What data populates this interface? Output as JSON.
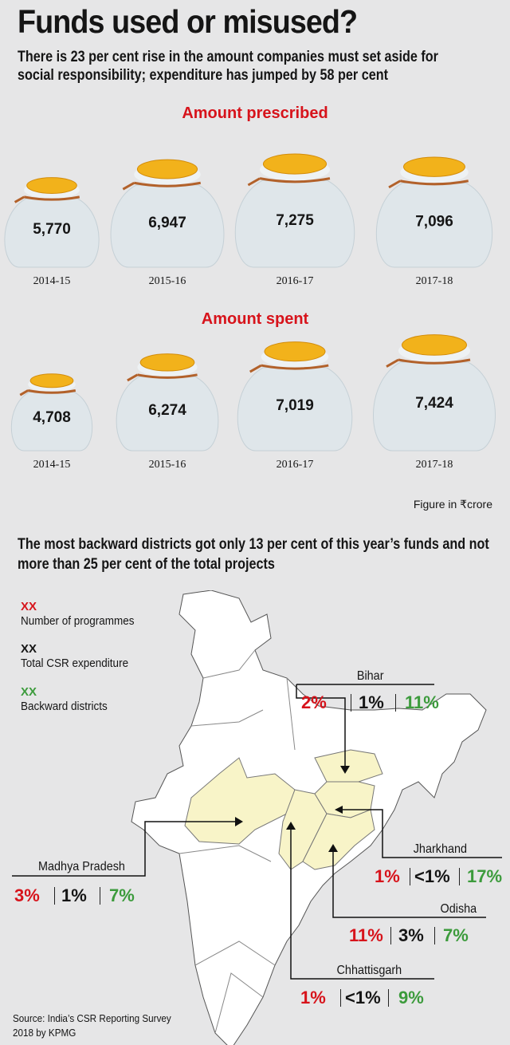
{
  "title": "Funds used or misused?",
  "subtitle": "There is 23 per cent rise in the amount companies must set aside for social responsibility; expenditure has jumped by 58 per cent",
  "unit_note": "Figure in ₹crore",
  "chart_data": {
    "type": "bar",
    "categories": [
      "2014-15",
      "2015-16",
      "2016-17",
      "2017-18"
    ],
    "series": [
      {
        "name": "Amount prescribed",
        "values": [
          5770,
          6947,
          7275,
          7096
        ],
        "labels": [
          "5,770",
          "6,947",
          "7,275",
          "7,096"
        ]
      },
      {
        "name": "Amount spent",
        "values": [
          4708,
          6274,
          7019,
          7424
        ],
        "labels": [
          "4,708",
          "6,274",
          "7,019",
          "7,424"
        ]
      }
    ],
    "colors": {
      "bag": "#dfe6ea",
      "coins": "#f2b21b",
      "tie": "#b2612a",
      "heading": "#d7131b"
    }
  },
  "map": {
    "subtitle": "The most backward districts got only 13 per cent of this year’s funds and not more than 25 per cent of the total projects",
    "legend": [
      {
        "marker": "XX",
        "label": "Number of programmes",
        "color": "#d7131b"
      },
      {
        "marker": "XX",
        "label": "Total CSR expenditure",
        "color": "#151515"
      },
      {
        "marker": "XX",
        "label": "Backward districts",
        "color": "#3c9b3c"
      }
    ],
    "states": {
      "bihar": {
        "name": "Bihar",
        "programmes": "2%",
        "expenditure": "1%",
        "backward": "11%"
      },
      "jharkhand": {
        "name": "Jharkhand",
        "programmes": "1%",
        "expenditure": "<1%",
        "backward": "17%"
      },
      "odisha": {
        "name": "Odisha",
        "programmes": "11%",
        "expenditure": "3%",
        "backward": "7%"
      },
      "chhattisgarh": {
        "name": "Chhattisgarh",
        "programmes": "1%",
        "expenditure": "<1%",
        "backward": "9%"
      },
      "mp": {
        "name": "Madhya Pradesh",
        "programmes": "3%",
        "expenditure": "1%",
        "backward": "7%"
      }
    },
    "highlight_color": "#f8f4c8"
  },
  "source": "Source: India’s CSR Reporting Survey 2018 by KPMG"
}
